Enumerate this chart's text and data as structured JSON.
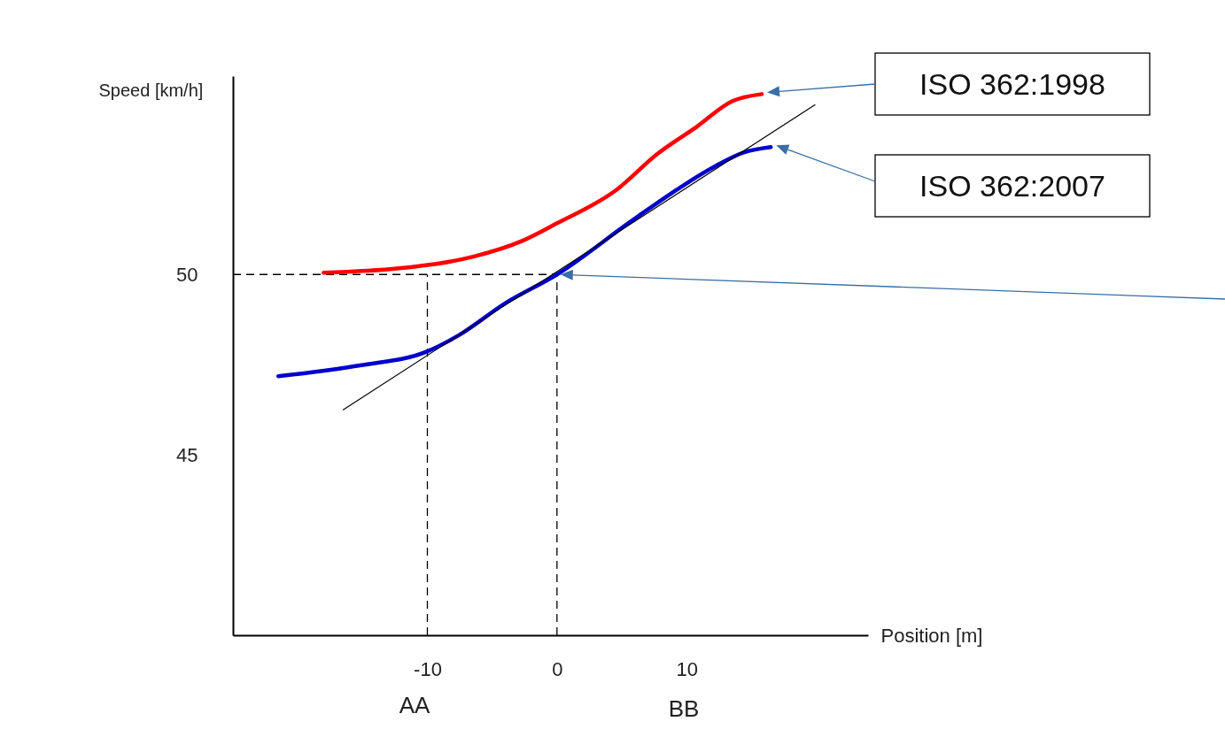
{
  "chart_data": {
    "type": "line",
    "xlabel": "Position [m]",
    "ylabel": "Speed [km/h]",
    "xlim": [
      -25,
      24
    ],
    "ylim": [
      40,
      55.5
    ],
    "xticks": [
      -10,
      0,
      10
    ],
    "yticks": [
      45,
      50
    ],
    "grid": false,
    "series": [
      {
        "color": "#ff0000",
        "x": [
          -18,
          -12.2,
          -6.4,
          -2.7,
          0,
          4.6,
          7.7,
          10.8,
          13.5,
          15.8
        ],
        "values": [
          50.05,
          50.17,
          50.5,
          50.93,
          51.42,
          52.35,
          53.33,
          54.1,
          54.8,
          55.0
        ]
      },
      {
        "color": "#0000cc",
        "x": [
          -21.5,
          -15.2,
          -10,
          -7.6,
          -4,
          0,
          6.2,
          12.2,
          14.4,
          16.5
        ],
        "values": [
          47.18,
          47.48,
          47.87,
          48.31,
          49.2,
          50,
          51.6,
          53,
          53.38,
          53.53
        ]
      },
      {
        "type": "line",
        "color": "#000000",
        "x": [
          -16.5,
          19.9
        ],
        "values": [
          46.25,
          54.7
        ]
      }
    ],
    "ref_lines": [
      {
        "axis": "y",
        "value": 50,
        "color": "#000000",
        "line_style": "dashed"
      },
      {
        "axis": "x",
        "value": -10,
        "color": "#000000",
        "line_style": "dashed"
      },
      {
        "axis": "x",
        "value": 0,
        "color": "#000000",
        "line_style": "dashed"
      }
    ],
    "annotations": [
      "ISO 362:1998",
      "ISO 362:2007",
      "AA",
      "BB"
    ]
  }
}
